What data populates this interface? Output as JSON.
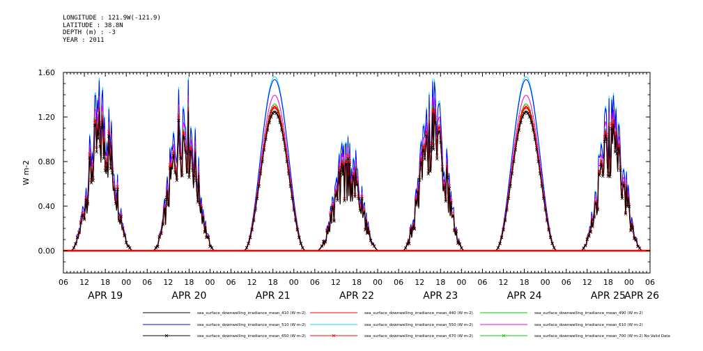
{
  "header": {
    "longitude": "LONGITUDE : 121.9W(-121.9)",
    "latitude": "LATITUDE : 38.8N",
    "depth": "DEPTH (m) : -3",
    "year": "YEAR : 2011"
  },
  "chart_data": {
    "type": "line",
    "title": "",
    "xlabel": "",
    "ylabel": "W m-2",
    "xlim": [
      "2011-04-19T06:00",
      "2011-04-26T06:00"
    ],
    "ylim": [
      -0.2,
      1.6
    ],
    "yticks": [
      "0.00",
      "0.40",
      "0.80",
      "1.20",
      "1.60"
    ],
    "ytick_values": [
      0,
      0.4,
      0.8,
      1.2,
      1.6
    ],
    "xtick_hour_labels": [
      "06",
      "12",
      "18",
      "00",
      "06",
      "12",
      "18",
      "00",
      "06",
      "12",
      "18",
      "00",
      "06",
      "12",
      "18",
      "00",
      "06",
      "12",
      "18",
      "00",
      "06",
      "12",
      "18",
      "00",
      "06",
      "12",
      "18",
      "00",
      "06"
    ],
    "x_day_labels": [
      "APR 19",
      "APR 20",
      "APR 21",
      "APR 22",
      "APR 23",
      "APR 24",
      "APR 25",
      "APR 26"
    ],
    "grid": false,
    "legend_position": "bottom",
    "daily_peak_y": [
      {
        "date": "2011-04-19",
        "time": "17:00",
        "y": 1.22
      },
      {
        "date": "2011-04-20",
        "time": "16:30",
        "y": 1.25
      },
      {
        "date": "2011-04-21",
        "time": "18:30",
        "y": 1.28
      },
      {
        "date": "2011-04-22",
        "time": "15:30",
        "y": 0.82
      },
      {
        "date": "2011-04-23",
        "time": "16:00",
        "y": 1.2
      },
      {
        "date": "2011-04-24",
        "time": "18:30",
        "y": 1.28
      },
      {
        "date": "2011-04-25",
        "time": "19:00",
        "y": 1.1
      }
    ],
    "series": [
      {
        "name": "sea_surface_downwelling_irradiance_mean_410 (W m-2)",
        "color": "#000000",
        "marker": "none",
        "scale": 0.98
      },
      {
        "name": "sea_surface_downwelling_irradiance_mean_440 (W m-2)",
        "color": "#ff0000",
        "marker": "none",
        "scale": 1.0
      },
      {
        "name": "sea_surface_downwelling_irradiance_mean_490 (W m-2)",
        "color": "#00cc00",
        "marker": "none",
        "scale": 1.03
      },
      {
        "name": "sea_surface_downwelling_irradiance_mean_510 (W m-2)",
        "color": "#0000ff",
        "marker": "none",
        "scale": 1.2
      },
      {
        "name": "sea_surface_downwelling_irradiance_mean_550 (W m-2)",
        "color": "#00e5ee",
        "marker": "none",
        "scale": 1.22
      },
      {
        "name": "sea_surface_downwelling_irradiance_mean_610 (W m-2)",
        "color": "#ee00ee",
        "marker": "none",
        "scale": 1.09
      },
      {
        "name": "sea_surface_downwelling_irradiance_mean_650 (W m-2)",
        "color": "#000000",
        "marker": "x",
        "scale": 0.97
      },
      {
        "name": "sea_surface_downwelling_irradiance_mean_670 (W m-2)",
        "color": "#ff0000",
        "marker": "x",
        "scale": 1.01
      },
      {
        "name": "sea_surface_downwelling_irradiance_mean_700 (W m-2) No Valid Data",
        "color": "#00cc00",
        "marker": "x",
        "scale": 0
      }
    ]
  }
}
